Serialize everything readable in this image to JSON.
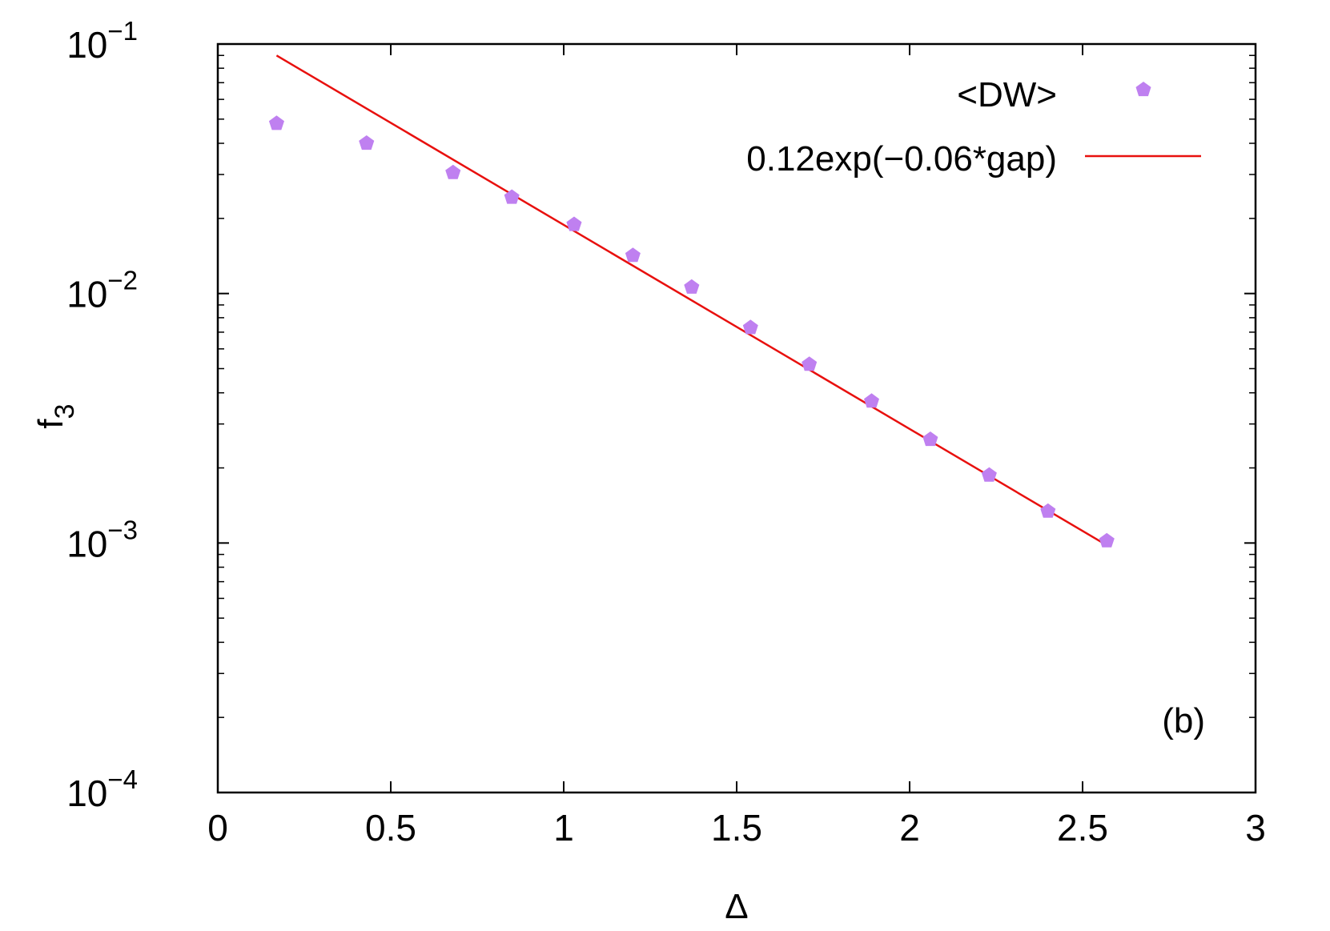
{
  "colors": {
    "points": "#bf80f0",
    "fit_line": "#e8100e",
    "axes": "#000000"
  },
  "chart_data": {
    "type": "scatter",
    "xlabel": "Δ",
    "ylabel": "f",
    "ylabel_subscript": "3",
    "xlim": [
      0,
      3
    ],
    "ylim": [
      0.0001,
      0.1
    ],
    "yscale": "log",
    "grid": false,
    "legend_position": "top-right",
    "panel_label": "(b)",
    "x_ticks": [
      "0",
      "0.5",
      "1",
      "1.5",
      "2",
      "2.5",
      "3"
    ],
    "y_ticks": [
      {
        "value": 0.1,
        "base": "10",
        "exp": "−1"
      },
      {
        "value": 0.01,
        "base": "10",
        "exp": "−2"
      },
      {
        "value": 0.001,
        "base": "10",
        "exp": "−3"
      },
      {
        "value": 0.0001,
        "base": "10",
        "exp": "−4"
      }
    ],
    "series": [
      {
        "name": "<DW>",
        "kind": "points",
        "marker": "pentagon",
        "x": [
          0.17,
          0.43,
          0.68,
          0.85,
          1.03,
          1.2,
          1.37,
          1.54,
          1.71,
          1.89,
          2.06,
          2.23,
          2.4,
          2.57
        ],
        "y": [
          0.048,
          0.04,
          0.0305,
          0.0243,
          0.0189,
          0.0142,
          0.0106,
          0.0073,
          0.0052,
          0.0037,
          0.0026,
          0.00187,
          0.00134,
          0.00102
        ]
      },
      {
        "name": "0.12exp(−0.06*gap)",
        "kind": "line",
        "x": [
          0.17,
          2.57
        ],
        "y": [
          0.09,
          0.00098
        ]
      }
    ]
  }
}
